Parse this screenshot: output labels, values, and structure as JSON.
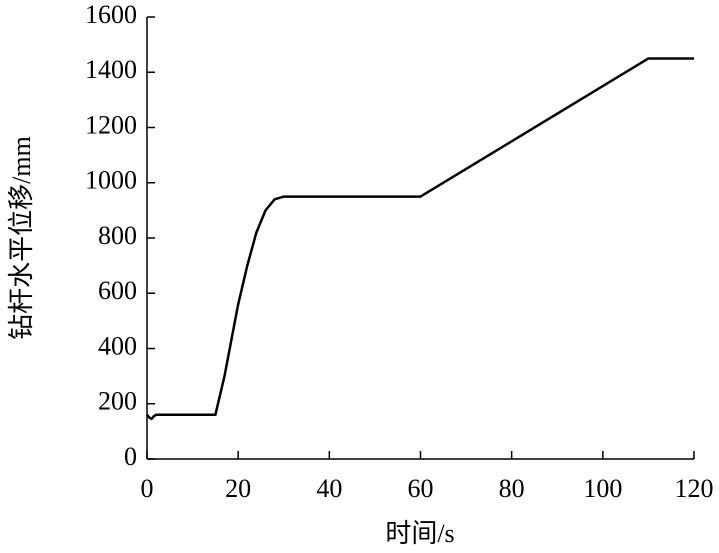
{
  "chart_data": {
    "type": "line",
    "x_label": "时间/s",
    "y_label": "钻杆水平位移/mm",
    "x": [
      0,
      0.5,
      1,
      1.5,
      2,
      15,
      17,
      20,
      22,
      24,
      26,
      28,
      30,
      60,
      110,
      120
    ],
    "series": [
      {
        "name": "钻杆水平位移",
        "color": "#000000",
        "values": [
          160,
          150,
          145,
          155,
          160,
          160,
          300,
          560,
          700,
          820,
          900,
          940,
          950,
          950,
          1450,
          1450
        ]
      }
    ],
    "xlim": [
      0,
      120
    ],
    "xticks": [
      0,
      20,
      40,
      60,
      80,
      100,
      120
    ],
    "ylim": [
      0,
      1600
    ],
    "yticks": [
      0,
      200,
      400,
      600,
      800,
      1000,
      1200,
      1400,
      1600
    ],
    "grid": false
  }
}
